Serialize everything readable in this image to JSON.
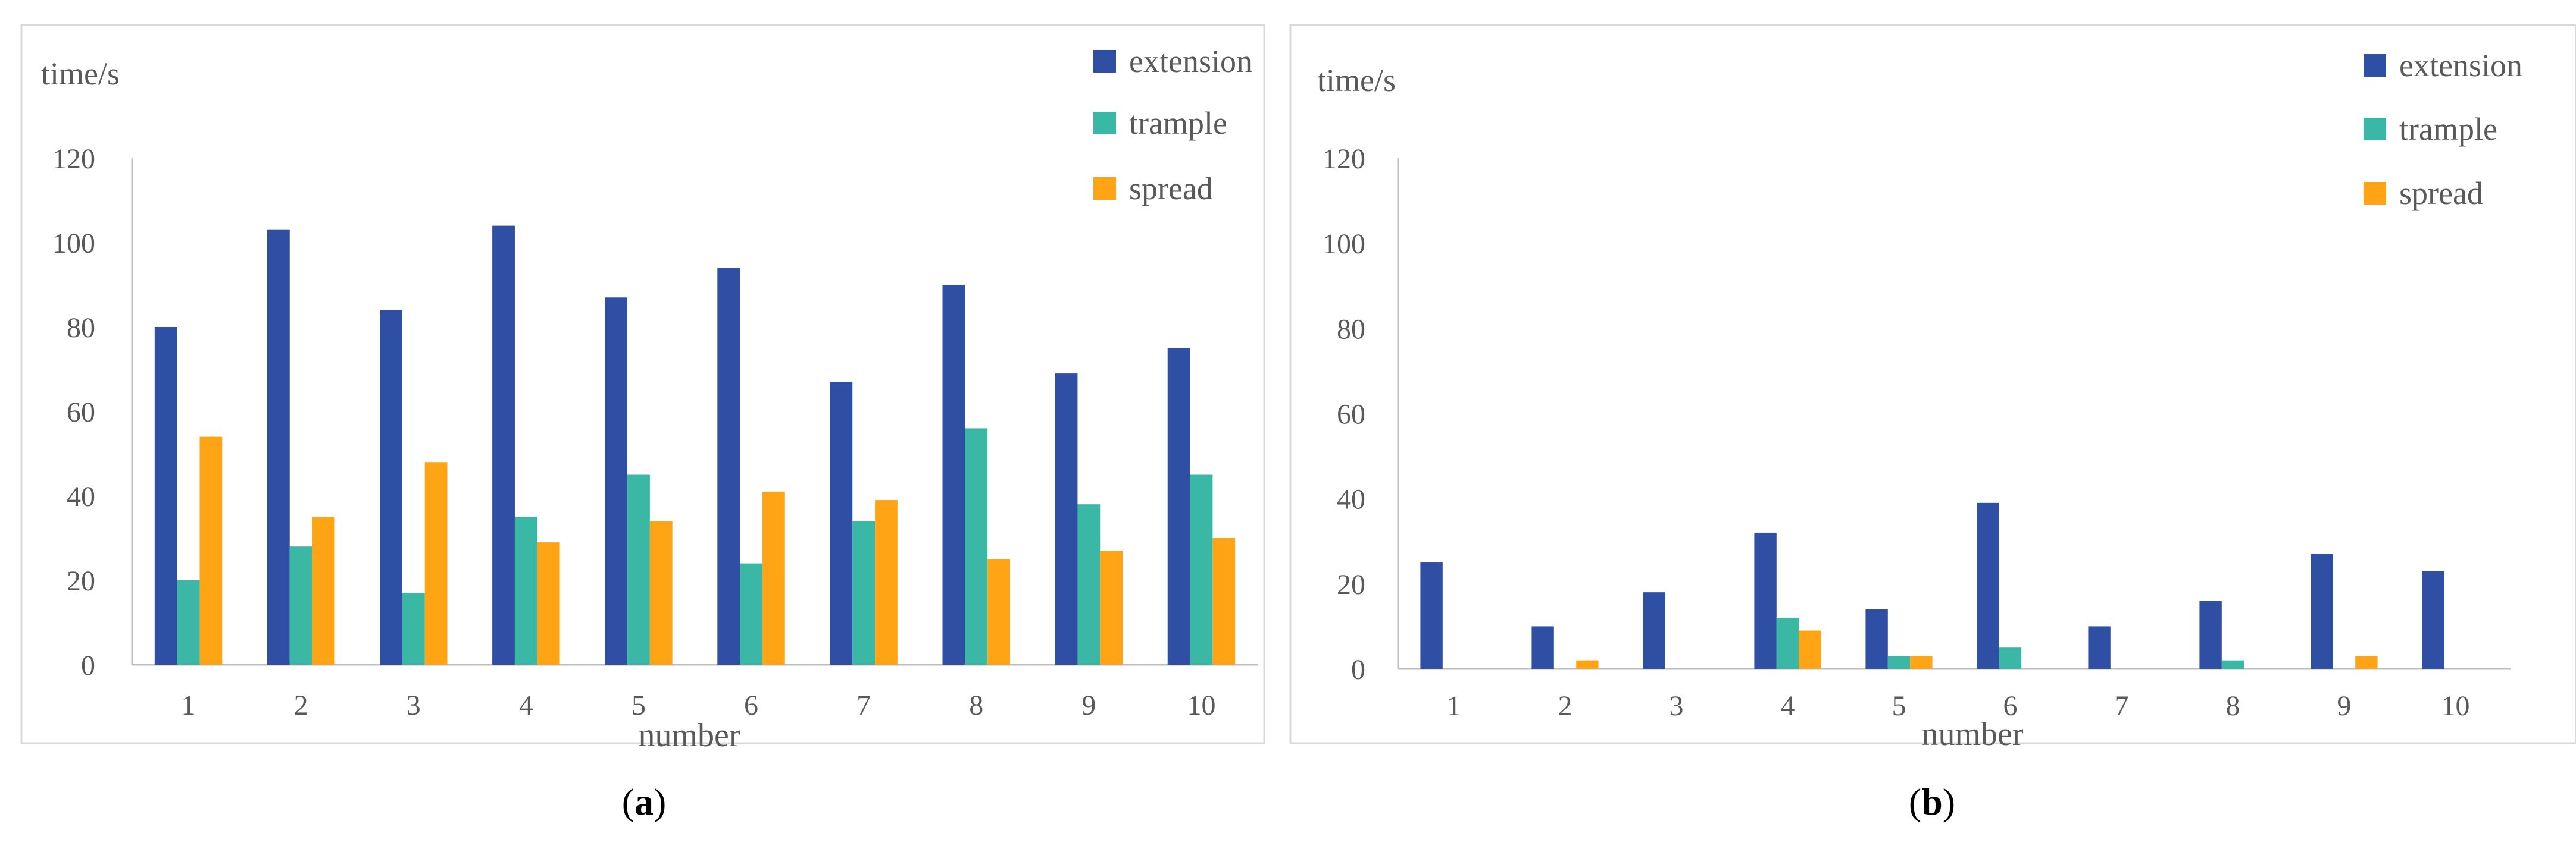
{
  "colors": {
    "extension": "#2E4FA3",
    "trample": "#3BB7A6",
    "spread": "#FFA515",
    "axis": "#BFBFBF",
    "text": "#595959",
    "frame": "#D9D9D9"
  },
  "chart_data": [
    {
      "type": "bar",
      "panel_label": "a",
      "ylabel": "time/s",
      "xlabel": "number",
      "ylim": [
        0,
        120
      ],
      "yticks": [
        "0",
        "20",
        "40",
        "60",
        "80",
        "100",
        "120"
      ],
      "categories": [
        "1",
        "2",
        "3",
        "4",
        "5",
        "6",
        "7",
        "8",
        "9",
        "10"
      ],
      "grid": false,
      "legend_position": "top-right",
      "series": [
        {
          "name": "extension",
          "values": [
            80,
            103,
            84,
            104,
            87,
            94,
            67,
            90,
            69,
            75
          ]
        },
        {
          "name": "trample",
          "values": [
            20,
            28,
            17,
            35,
            45,
            24,
            34,
            56,
            38,
            45
          ]
        },
        {
          "name": "spread",
          "values": [
            54,
            35,
            48,
            29,
            34,
            41,
            39,
            25,
            27,
            30
          ]
        }
      ]
    },
    {
      "type": "bar",
      "panel_label": "b",
      "ylabel": "time/s",
      "xlabel": "number",
      "ylim": [
        0,
        120
      ],
      "yticks": [
        "0",
        "20",
        "40",
        "60",
        "80",
        "100",
        "120"
      ],
      "categories": [
        "1",
        "2",
        "3",
        "4",
        "5",
        "6",
        "7",
        "8",
        "9",
        "10"
      ],
      "grid": false,
      "legend_position": "top-right",
      "series": [
        {
          "name": "extension",
          "values": [
            25,
            10,
            18,
            32,
            14,
            39,
            10,
            16,
            27,
            23
          ]
        },
        {
          "name": "trample",
          "values": [
            0,
            0,
            0,
            12,
            3,
            5,
            0,
            2,
            0,
            0
          ]
        },
        {
          "name": "spread",
          "values": [
            0,
            2,
            0,
            9,
            3,
            0,
            0,
            0,
            3,
            0
          ]
        }
      ]
    }
  ]
}
